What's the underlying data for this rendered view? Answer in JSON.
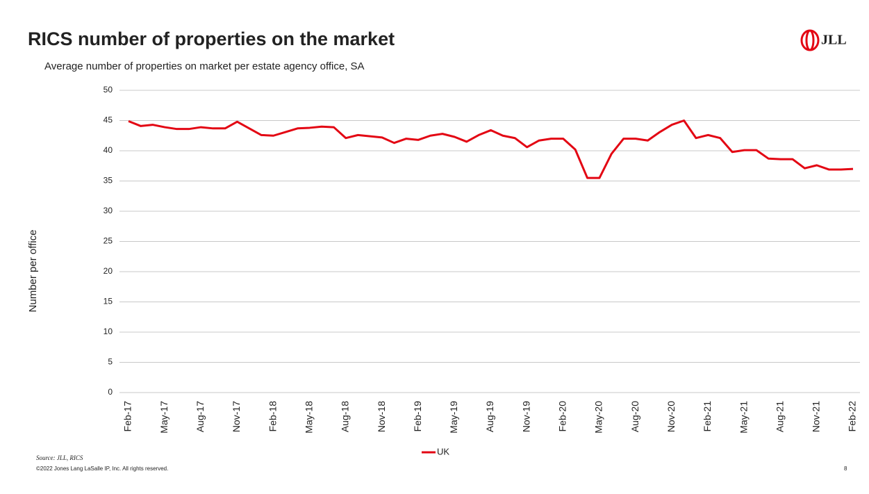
{
  "chart_data": {
    "type": "line",
    "title": "RICS number of properties on the market",
    "subtitle": "Average number of properties on market per estate agency office, SA",
    "y_label": "Number per office",
    "logo": "JLL",
    "source": "Source: JLL, RICS",
    "copyright": "©2022 Jones Lang LaSalle IP, Inc. All rights reserved.",
    "page_number": "8",
    "categories": [
      "Feb-17",
      null,
      null,
      "May-17",
      null,
      null,
      "Aug-17",
      null,
      null,
      "Nov-17",
      null,
      null,
      "Feb-18",
      null,
      null,
      "May-18",
      null,
      null,
      "Aug-18",
      null,
      null,
      "Nov-18",
      null,
      null,
      "Feb-19",
      null,
      null,
      "May-19",
      null,
      null,
      "Aug-19",
      null,
      null,
      "Nov-19",
      null,
      null,
      "Feb-20",
      null,
      null,
      "May-20",
      null,
      null,
      "Aug-20",
      null,
      null,
      "Nov-20",
      null,
      null,
      "Feb-21",
      null,
      null,
      "May-21",
      null,
      null,
      "Aug-21",
      null,
      null,
      "Nov-21",
      null,
      null,
      "Feb-22"
    ],
    "series": [
      {
        "name": "UK",
        "color": "#e30613",
        "values": [
          44.9,
          44.1,
          44.3,
          43.9,
          43.6,
          43.6,
          43.9,
          43.7,
          43.7,
          44.8,
          43.7,
          42.6,
          42.5,
          43.1,
          43.7,
          43.8,
          44.0,
          43.9,
          42.1,
          42.6,
          42.4,
          42.2,
          41.3,
          42.0,
          41.8,
          42.5,
          42.8,
          42.3,
          41.5,
          42.6,
          43.4,
          42.5,
          42.1,
          40.6,
          41.7,
          42.0,
          42.0,
          40.2,
          35.5,
          35.5,
          39.5,
          42.0,
          42.0,
          41.7,
          43.1,
          44.3,
          45.0,
          42.1,
          42.6,
          42.1,
          39.8,
          40.1,
          40.1,
          38.7,
          38.6,
          38.6,
          37.1,
          37.6,
          36.9,
          36.9,
          37.0
        ]
      }
    ],
    "ylim": [
      0,
      50
    ],
    "yticks": [
      0,
      5,
      10,
      15,
      20,
      25,
      30,
      35,
      40,
      45,
      50
    ],
    "grid": true,
    "legend": "bottom"
  }
}
